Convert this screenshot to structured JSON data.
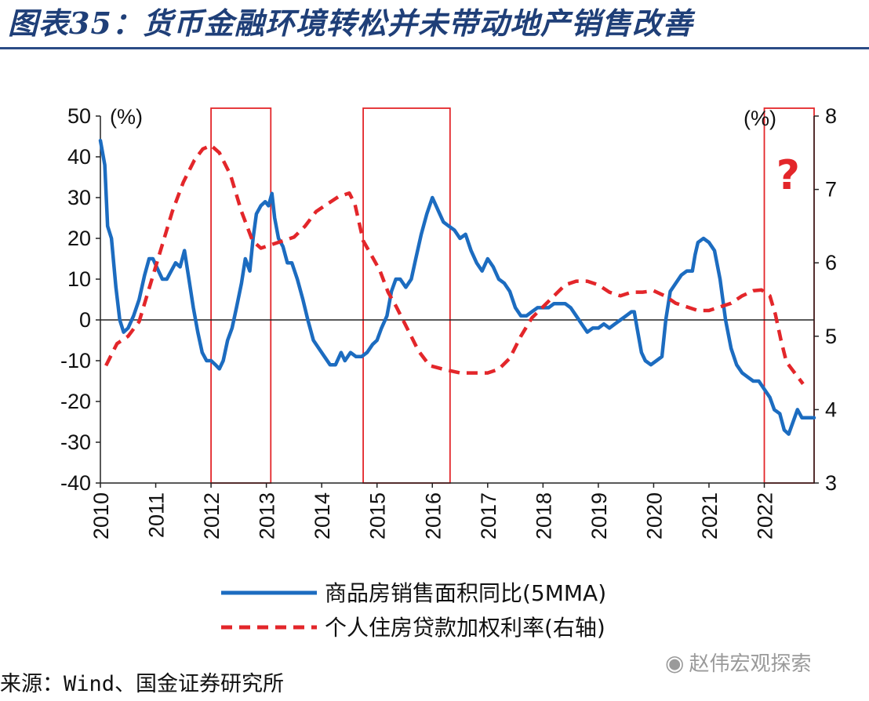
{
  "title": "图表35：货币金融环境转松并未带动地产销售改善",
  "source": "来源：Wind、国金证券研究所",
  "watermark": {
    "icon": "wechat-icon",
    "text": "赵伟宏观探索"
  },
  "colors": {
    "title": "#1f3f78",
    "rule": "#2b4c86",
    "series_sales": "#1c6cc0",
    "series_rate": "#e3262a",
    "highlight_box": "#e3262a",
    "axis": "#222222"
  },
  "chart_data": {
    "type": "line",
    "left_axis": {
      "label": "(%)",
      "ylim": [
        -40,
        50
      ],
      "ticks": [
        50,
        40,
        30,
        20,
        10,
        0,
        -10,
        -20,
        -30,
        -40
      ]
    },
    "right_axis": {
      "label": "(%)",
      "ylim": [
        3,
        8
      ],
      "ticks": [
        8,
        7,
        6,
        5,
        4,
        3
      ]
    },
    "x_axis": {
      "xlim": [
        2010.0,
        2022.9
      ],
      "ticks": [
        "2010",
        "2011",
        "2012",
        "2013",
        "2014",
        "2015",
        "2016",
        "2017",
        "2018",
        "2019",
        "2020",
        "2021",
        "2022"
      ]
    },
    "highlight_periods": [
      [
        2012.0,
        2013.08
      ],
      [
        2014.75,
        2016.32
      ],
      [
        2022.0,
        2022.9
      ]
    ],
    "annotations": [
      {
        "text": "?",
        "x": 2022.43,
        "y_right": 7.2
      }
    ],
    "series": [
      {
        "name": "商品房销售面积同比(5MMA)",
        "axis": "left",
        "points": [
          [
            2010.0,
            44
          ],
          [
            2010.08,
            38
          ],
          [
            2010.13,
            23
          ],
          [
            2010.2,
            20
          ],
          [
            2010.28,
            8
          ],
          [
            2010.35,
            0
          ],
          [
            2010.42,
            -3
          ],
          [
            2010.5,
            -2
          ],
          [
            2010.6,
            1
          ],
          [
            2010.7,
            5
          ],
          [
            2010.8,
            11
          ],
          [
            2010.88,
            15
          ],
          [
            2010.95,
            15
          ],
          [
            2011.05,
            12
          ],
          [
            2011.12,
            10
          ],
          [
            2011.2,
            10
          ],
          [
            2011.28,
            12
          ],
          [
            2011.36,
            14
          ],
          [
            2011.44,
            13
          ],
          [
            2011.52,
            17
          ],
          [
            2011.6,
            10
          ],
          [
            2011.68,
            3
          ],
          [
            2011.76,
            -3
          ],
          [
            2011.84,
            -8
          ],
          [
            2011.92,
            -10
          ],
          [
            2012.0,
            -10
          ],
          [
            2012.08,
            -11
          ],
          [
            2012.15,
            -12
          ],
          [
            2012.22,
            -10
          ],
          [
            2012.3,
            -5
          ],
          [
            2012.38,
            -2
          ],
          [
            2012.46,
            3
          ],
          [
            2012.55,
            9
          ],
          [
            2012.62,
            15
          ],
          [
            2012.7,
            12
          ],
          [
            2012.76,
            20
          ],
          [
            2012.82,
            26
          ],
          [
            2012.9,
            28
          ],
          [
            2012.98,
            29
          ],
          [
            2013.04,
            28
          ],
          [
            2013.1,
            31
          ],
          [
            2013.15,
            25
          ],
          [
            2013.22,
            20
          ],
          [
            2013.3,
            18
          ],
          [
            2013.38,
            14
          ],
          [
            2013.46,
            14
          ],
          [
            2013.56,
            10
          ],
          [
            2013.66,
            5
          ],
          [
            2013.75,
            0
          ],
          [
            2013.85,
            -5
          ],
          [
            2013.95,
            -7
          ],
          [
            2014.05,
            -9
          ],
          [
            2014.15,
            -11
          ],
          [
            2014.25,
            -11
          ],
          [
            2014.35,
            -8
          ],
          [
            2014.42,
            -10
          ],
          [
            2014.52,
            -8
          ],
          [
            2014.62,
            -9
          ],
          [
            2014.72,
            -9
          ],
          [
            2014.82,
            -8
          ],
          [
            2014.92,
            -6
          ],
          [
            2015.0,
            -5
          ],
          [
            2015.08,
            -2
          ],
          [
            2015.18,
            1
          ],
          [
            2015.26,
            7
          ],
          [
            2015.34,
            10
          ],
          [
            2015.42,
            10
          ],
          [
            2015.52,
            8
          ],
          [
            2015.62,
            10
          ],
          [
            2015.7,
            15
          ],
          [
            2015.8,
            21
          ],
          [
            2015.9,
            26
          ],
          [
            2016.0,
            30
          ],
          [
            2016.1,
            27
          ],
          [
            2016.2,
            24
          ],
          [
            2016.3,
            23
          ],
          [
            2016.4,
            22
          ],
          [
            2016.5,
            20
          ],
          [
            2016.6,
            21
          ],
          [
            2016.7,
            17
          ],
          [
            2016.8,
            14
          ],
          [
            2016.9,
            12
          ],
          [
            2017.0,
            15
          ],
          [
            2017.1,
            13
          ],
          [
            2017.2,
            10
          ],
          [
            2017.3,
            9
          ],
          [
            2017.4,
            7
          ],
          [
            2017.5,
            3
          ],
          [
            2017.6,
            1
          ],
          [
            2017.7,
            1
          ],
          [
            2017.8,
            2
          ],
          [
            2017.9,
            3
          ],
          [
            2018.0,
            3
          ],
          [
            2018.1,
            3
          ],
          [
            2018.2,
            4
          ],
          [
            2018.3,
            4
          ],
          [
            2018.4,
            4
          ],
          [
            2018.5,
            3
          ],
          [
            2018.6,
            1
          ],
          [
            2018.7,
            -1
          ],
          [
            2018.8,
            -3
          ],
          [
            2018.9,
            -2
          ],
          [
            2019.0,
            -2
          ],
          [
            2019.1,
            -1
          ],
          [
            2019.2,
            -2
          ],
          [
            2019.3,
            -1
          ],
          [
            2019.4,
            0
          ],
          [
            2019.5,
            1
          ],
          [
            2019.6,
            2
          ],
          [
            2019.65,
            2
          ],
          [
            2019.7,
            -2
          ],
          [
            2019.78,
            -8
          ],
          [
            2019.85,
            -10
          ],
          [
            2019.95,
            -11
          ],
          [
            2020.05,
            -10
          ],
          [
            2020.15,
            -9
          ],
          [
            2020.22,
            0
          ],
          [
            2020.3,
            7
          ],
          [
            2020.4,
            9
          ],
          [
            2020.5,
            11
          ],
          [
            2020.6,
            12
          ],
          [
            2020.7,
            12
          ],
          [
            2020.75,
            16
          ],
          [
            2020.8,
            19
          ],
          [
            2020.9,
            20
          ],
          [
            2021.0,
            19
          ],
          [
            2021.1,
            17
          ],
          [
            2021.2,
            10
          ],
          [
            2021.3,
            0
          ],
          [
            2021.4,
            -7
          ],
          [
            2021.5,
            -11
          ],
          [
            2021.6,
            -13
          ],
          [
            2021.7,
            -14
          ],
          [
            2021.8,
            -15
          ],
          [
            2021.9,
            -15
          ],
          [
            2022.0,
            -17
          ],
          [
            2022.1,
            -19
          ],
          [
            2022.18,
            -22
          ],
          [
            2022.28,
            -23
          ],
          [
            2022.36,
            -27
          ],
          [
            2022.44,
            -28
          ],
          [
            2022.52,
            -25
          ],
          [
            2022.6,
            -22
          ],
          [
            2022.68,
            -24
          ],
          [
            2022.78,
            -24
          ],
          [
            2022.9,
            -24
          ]
        ]
      },
      {
        "name": "个人住房贷款加权利率(右轴)",
        "axis": "right",
        "points": [
          [
            2010.1,
            4.6
          ],
          [
            2010.3,
            4.9
          ],
          [
            2010.5,
            5.0
          ],
          [
            2010.7,
            5.2
          ],
          [
            2010.9,
            5.7
          ],
          [
            2011.1,
            6.2
          ],
          [
            2011.3,
            6.7
          ],
          [
            2011.5,
            7.1
          ],
          [
            2011.7,
            7.4
          ],
          [
            2011.85,
            7.55
          ],
          [
            2012.0,
            7.6
          ],
          [
            2012.15,
            7.5
          ],
          [
            2012.35,
            7.2
          ],
          [
            2012.55,
            6.7
          ],
          [
            2012.75,
            6.3
          ],
          [
            2012.9,
            6.2
          ],
          [
            2013.1,
            6.25
          ],
          [
            2013.3,
            6.3
          ],
          [
            2013.5,
            6.35
          ],
          [
            2013.7,
            6.5
          ],
          [
            2013.9,
            6.7
          ],
          [
            2014.1,
            6.8
          ],
          [
            2014.3,
            6.9
          ],
          [
            2014.5,
            6.95
          ],
          [
            2014.6,
            6.8
          ],
          [
            2014.75,
            6.3
          ],
          [
            2014.9,
            6.1
          ],
          [
            2015.05,
            5.9
          ],
          [
            2015.2,
            5.6
          ],
          [
            2015.35,
            5.4
          ],
          [
            2015.55,
            5.1
          ],
          [
            2015.75,
            4.8
          ],
          [
            2015.95,
            4.6
          ],
          [
            2016.2,
            4.55
          ],
          [
            2016.5,
            4.5
          ],
          [
            2016.8,
            4.5
          ],
          [
            2017.0,
            4.5
          ],
          [
            2017.2,
            4.55
          ],
          [
            2017.4,
            4.7
          ],
          [
            2017.6,
            5.0
          ],
          [
            2017.8,
            5.25
          ],
          [
            2018.0,
            5.4
          ],
          [
            2018.2,
            5.55
          ],
          [
            2018.4,
            5.7
          ],
          [
            2018.6,
            5.75
          ],
          [
            2018.8,
            5.75
          ],
          [
            2019.0,
            5.7
          ],
          [
            2019.2,
            5.6
          ],
          [
            2019.4,
            5.55
          ],
          [
            2019.6,
            5.6
          ],
          [
            2019.8,
            5.6
          ],
          [
            2020.0,
            5.62
          ],
          [
            2020.2,
            5.55
          ],
          [
            2020.4,
            5.45
          ],
          [
            2020.6,
            5.4
          ],
          [
            2020.8,
            5.35
          ],
          [
            2021.0,
            5.35
          ],
          [
            2021.2,
            5.4
          ],
          [
            2021.4,
            5.45
          ],
          [
            2021.6,
            5.55
          ],
          [
            2021.8,
            5.62
          ],
          [
            2021.95,
            5.63
          ],
          [
            2022.1,
            5.55
          ],
          [
            2022.2,
            5.3
          ],
          [
            2022.3,
            4.95
          ],
          [
            2022.4,
            4.65
          ],
          [
            2022.55,
            4.5
          ],
          [
            2022.7,
            4.35
          ]
        ]
      }
    ]
  }
}
